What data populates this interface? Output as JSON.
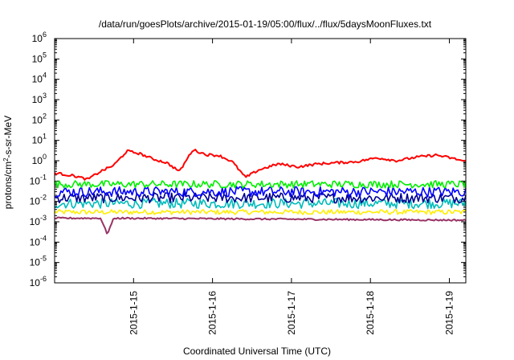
{
  "chart_data": {
    "type": "line",
    "title": "/data/run/goesPlots/archive/2015-01-19/05:00/flux/../flux/5daysMoonFluxes.txt",
    "xlabel": "Coordinated Universal Time (UTC)",
    "ylabel": {
      "base": "protons/cm",
      "sup": "2",
      "rest": "-s-sr-MeV"
    },
    "yscale": "log",
    "ylim": [
      1e-06,
      1000000.0
    ],
    "y_ticks": [
      {
        "exp": "-6",
        "value": 1e-06
      },
      {
        "exp": "-5",
        "value": 1e-05
      },
      {
        "exp": "-4",
        "value": 0.0001
      },
      {
        "exp": "-3",
        "value": 0.001
      },
      {
        "exp": "-2",
        "value": 0.01
      },
      {
        "exp": "-1",
        "value": 0.1
      },
      {
        "exp": "0",
        "value": 1
      },
      {
        "exp": "1",
        "value": 10
      },
      {
        "exp": "2",
        "value": 100
      },
      {
        "exp": "3",
        "value": 1000
      },
      {
        "exp": "4",
        "value": 10000
      },
      {
        "exp": "5",
        "value": 100000
      },
      {
        "exp": "6",
        "value": 1000000
      }
    ],
    "y_tick_base": "10",
    "xlim": [
      "2015-01-14 00:00",
      "2015-01-19 05:00"
    ],
    "x_ticks": [
      "2015-1-15",
      "2015-1-16",
      "2015-1-17",
      "2015-1-18",
      "2015-1-19"
    ],
    "grid": false,
    "legend": "none",
    "series": [
      {
        "color": "#ff0000",
        "x": [
          "2015-01-14 00:00",
          "2015-01-14 06:00",
          "2015-01-14 10:00",
          "2015-01-14 14:00",
          "2015-01-14 18:00",
          "2015-01-14 22:00",
          "2015-01-15 02:00",
          "2015-01-15 06:00",
          "2015-01-15 10:00",
          "2015-01-15 14:00",
          "2015-01-15 18:00",
          "2015-01-15 22:00",
          "2015-01-16 02:00",
          "2015-01-16 06:00",
          "2015-01-16 10:00",
          "2015-01-16 14:00",
          "2015-01-16 20:00",
          "2015-01-17 02:00",
          "2015-01-17 08:00",
          "2015-01-17 14:00",
          "2015-01-17 20:00",
          "2015-01-18 02:00",
          "2015-01-18 08:00",
          "2015-01-18 14:00",
          "2015-01-18 20:00",
          "2015-01-19 02:00",
          "2015-01-19 05:00"
        ],
        "y": [
          0.25,
          0.18,
          0.12,
          0.3,
          0.6,
          3.0,
          2.2,
          1.2,
          0.8,
          0.3,
          3.5,
          2.0,
          1.8,
          0.9,
          0.15,
          0.35,
          0.7,
          0.5,
          0.7,
          0.8,
          0.9,
          1.4,
          1.0,
          1.5,
          1.9,
          1.2,
          0.9
        ]
      },
      {
        "color": "#00ee00",
        "x": [
          "2015-01-14 00:00",
          "2015-01-19 05:00"
        ],
        "y": [
          0.07,
          0.07
        ]
      },
      {
        "color": "#0000ff",
        "x": [
          "2015-01-14 00:00",
          "2015-01-19 05:00"
        ],
        "y": [
          0.03,
          0.03
        ]
      },
      {
        "color": "#000090",
        "x": [
          "2015-01-14 00:00",
          "2015-01-19 05:00"
        ],
        "y": [
          0.015,
          0.015
        ]
      },
      {
        "color": "#00bbbb",
        "x": [
          "2015-01-14 00:00",
          "2015-01-19 05:00"
        ],
        "y": [
          0.008,
          0.008
        ]
      },
      {
        "color": "#ffee00",
        "x": [
          "2015-01-14 00:00",
          "2015-01-19 05:00"
        ],
        "y": [
          0.003,
          0.003
        ]
      },
      {
        "color": "#993366",
        "x": [
          "2015-01-14 00:00",
          "2015-01-14 14:00",
          "2015-01-14 16:00",
          "2015-01-14 18:00",
          "2015-01-19 05:00"
        ],
        "y": [
          0.0015,
          0.0015,
          0.00025,
          0.0015,
          0.0012
        ]
      }
    ]
  }
}
